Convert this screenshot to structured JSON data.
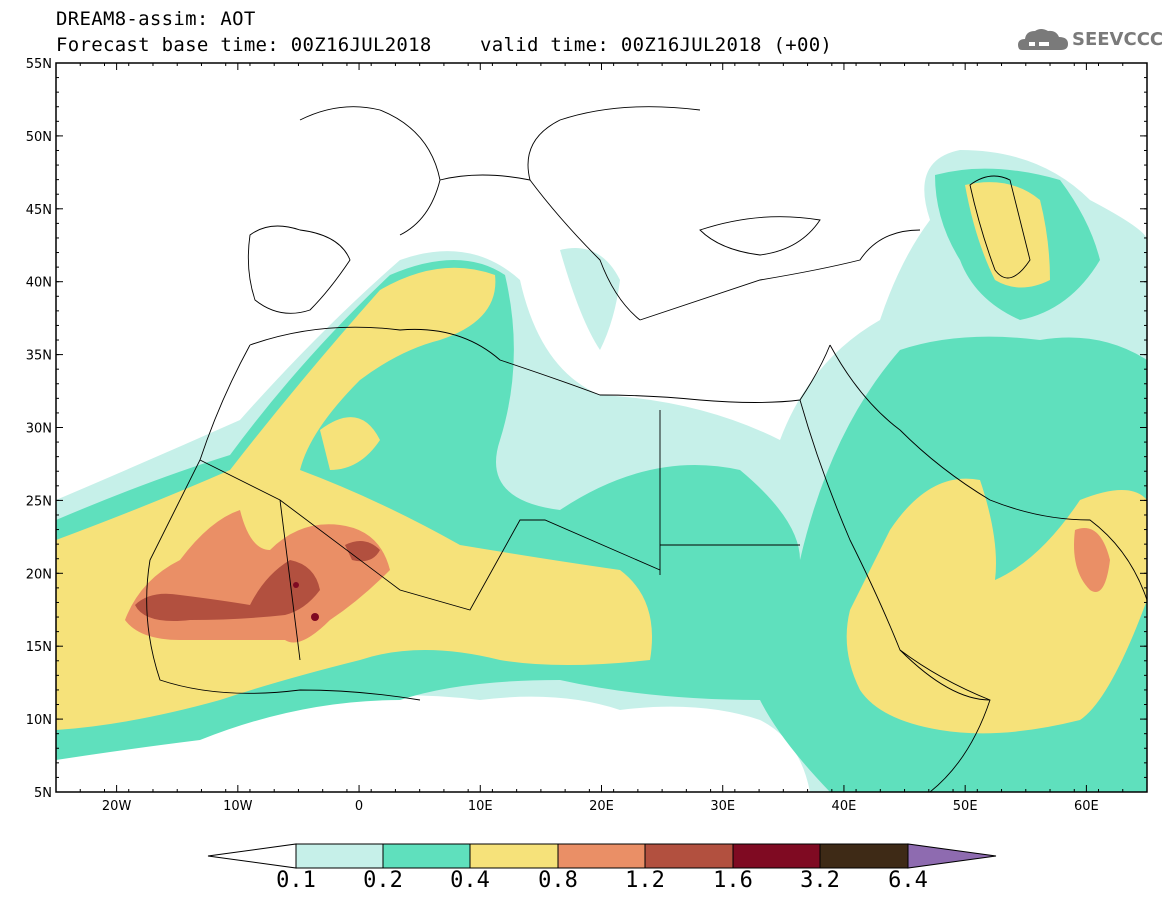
{
  "header": {
    "title": "DREAM8-assim: AOT",
    "forecast_base": "Forecast base time: 00Z16JUL2018",
    "valid_time": "valid time: 00Z16JUL2018 (+00)"
  },
  "logo": {
    "text": "SEEVCCC",
    "icon": "cloud-icon"
  },
  "map": {
    "lon_range": [
      -25,
      65
    ],
    "lat_range": [
      5,
      55
    ],
    "lat_ticks": [
      "55N",
      "50N",
      "45N",
      "40N",
      "35N",
      "30N",
      "25N",
      "20N",
      "15N",
      "10N",
      "5N"
    ],
    "lon_ticks": [
      "20W",
      "10W",
      "0",
      "10E",
      "20E",
      "30E",
      "40E",
      "50E",
      "60E"
    ]
  },
  "colorbar": {
    "labels": [
      "0.1",
      "0.2",
      "0.4",
      "0.8",
      "1.2",
      "1.6",
      "3.2",
      "6.4"
    ],
    "colors": [
      "#ffffff",
      "#c6f0e9",
      "#5fe0bd",
      "#f6e27a",
      "#ea8f66",
      "#b2503f",
      "#7f0a22",
      "#3e2a16",
      "#8e6bb0"
    ]
  }
}
